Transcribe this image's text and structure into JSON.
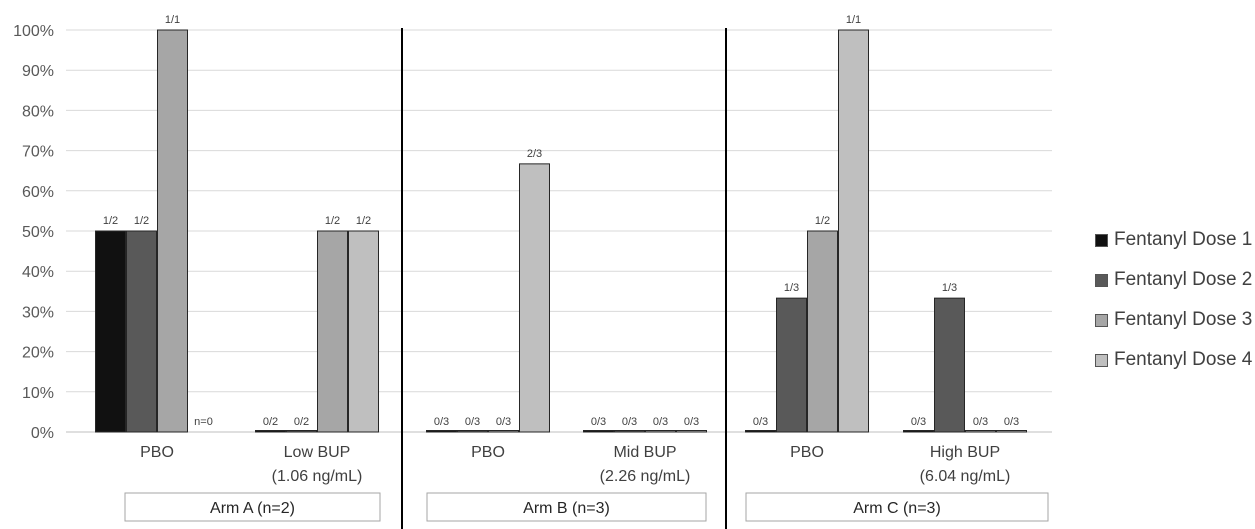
{
  "chart_data": {
    "type": "bar",
    "ylim": [
      0,
      100
    ],
    "yticks": [
      0,
      10,
      20,
      30,
      40,
      50,
      60,
      70,
      80,
      90,
      100
    ],
    "ytick_labels": [
      "0%",
      "10%",
      "20%",
      "30%",
      "40%",
      "50%",
      "60%",
      "70%",
      "80%",
      "90%",
      "100%"
    ],
    "grid": true,
    "legend_position": "right",
    "series": [
      {
        "name": "Fentanyl Dose 1",
        "color": "#111111"
      },
      {
        "name": "Fentanyl Dose 2",
        "color": "#595959"
      },
      {
        "name": "Fentanyl Dose 3",
        "color": "#a6a6a6"
      },
      {
        "name": "Fentanyl Dose 4",
        "color": "#bfbfbf"
      }
    ],
    "arms": [
      {
        "label": "Arm A (n=2)",
        "groups": [
          {
            "label": [
              "PBO"
            ],
            "values": [
              50,
              50,
              100,
              null
            ],
            "data_labels": [
              "1/2",
              "1/2",
              "1/1",
              "n=0"
            ]
          },
          {
            "label": [
              "Low BUP",
              "(1.06 ng/mL)"
            ],
            "values": [
              0,
              0,
              50,
              50
            ],
            "data_labels": [
              "0/2",
              "0/2",
              "1/2",
              "1/2"
            ]
          }
        ]
      },
      {
        "label": "Arm B (n=3)",
        "groups": [
          {
            "label": [
              "PBO"
            ],
            "values": [
              0,
              0,
              0,
              66.7
            ],
            "data_labels": [
              "0/3",
              "0/3",
              "0/3",
              "2/3"
            ]
          },
          {
            "label": [
              "Mid BUP",
              "(2.26 ng/mL)"
            ],
            "values": [
              0,
              0,
              0,
              0
            ],
            "data_labels": [
              "0/3",
              "0/3",
              "0/3",
              "0/3"
            ]
          }
        ]
      },
      {
        "label": "Arm C (n=3)",
        "groups": [
          {
            "label": [
              "PBO"
            ],
            "values": [
              0,
              33.3,
              50,
              100
            ],
            "data_labels": [
              "0/3",
              "1/3",
              "1/2",
              "1/1"
            ]
          },
          {
            "label": [
              "High BUP",
              "(6.04 ng/mL)"
            ],
            "values": [
              0,
              33.3,
              0,
              0
            ],
            "data_labels": [
              "0/3",
              "1/3",
              "0/3",
              "0/3"
            ]
          }
        ]
      }
    ]
  }
}
